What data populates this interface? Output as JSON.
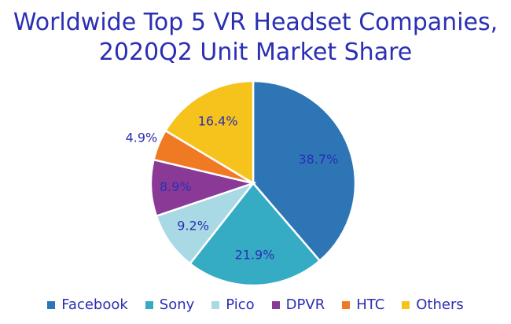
{
  "chart_data": {
    "type": "pie",
    "title_lines": [
      "Worldwide Top 5 VR Headset Companies,",
      "2020Q2 Unit Market Share"
    ],
    "categories": [
      "Facebook",
      "Sony",
      "Pico",
      "DPVR",
      "HTC",
      "Others"
    ],
    "values": [
      38.7,
      21.9,
      9.2,
      8.9,
      4.9,
      16.4
    ],
    "value_labels": [
      "38.7%",
      "21.9%",
      "9.2%",
      "8.9%",
      "4.9%",
      "16.4%"
    ],
    "colors": [
      "#2e75b6",
      "#36acc4",
      "#a9d9e4",
      "#8a3a96",
      "#ef7a23",
      "#f6c21c"
    ],
    "legend_position": "bottom",
    "start_angle": "12 o'clock",
    "direction": "clockwise"
  }
}
